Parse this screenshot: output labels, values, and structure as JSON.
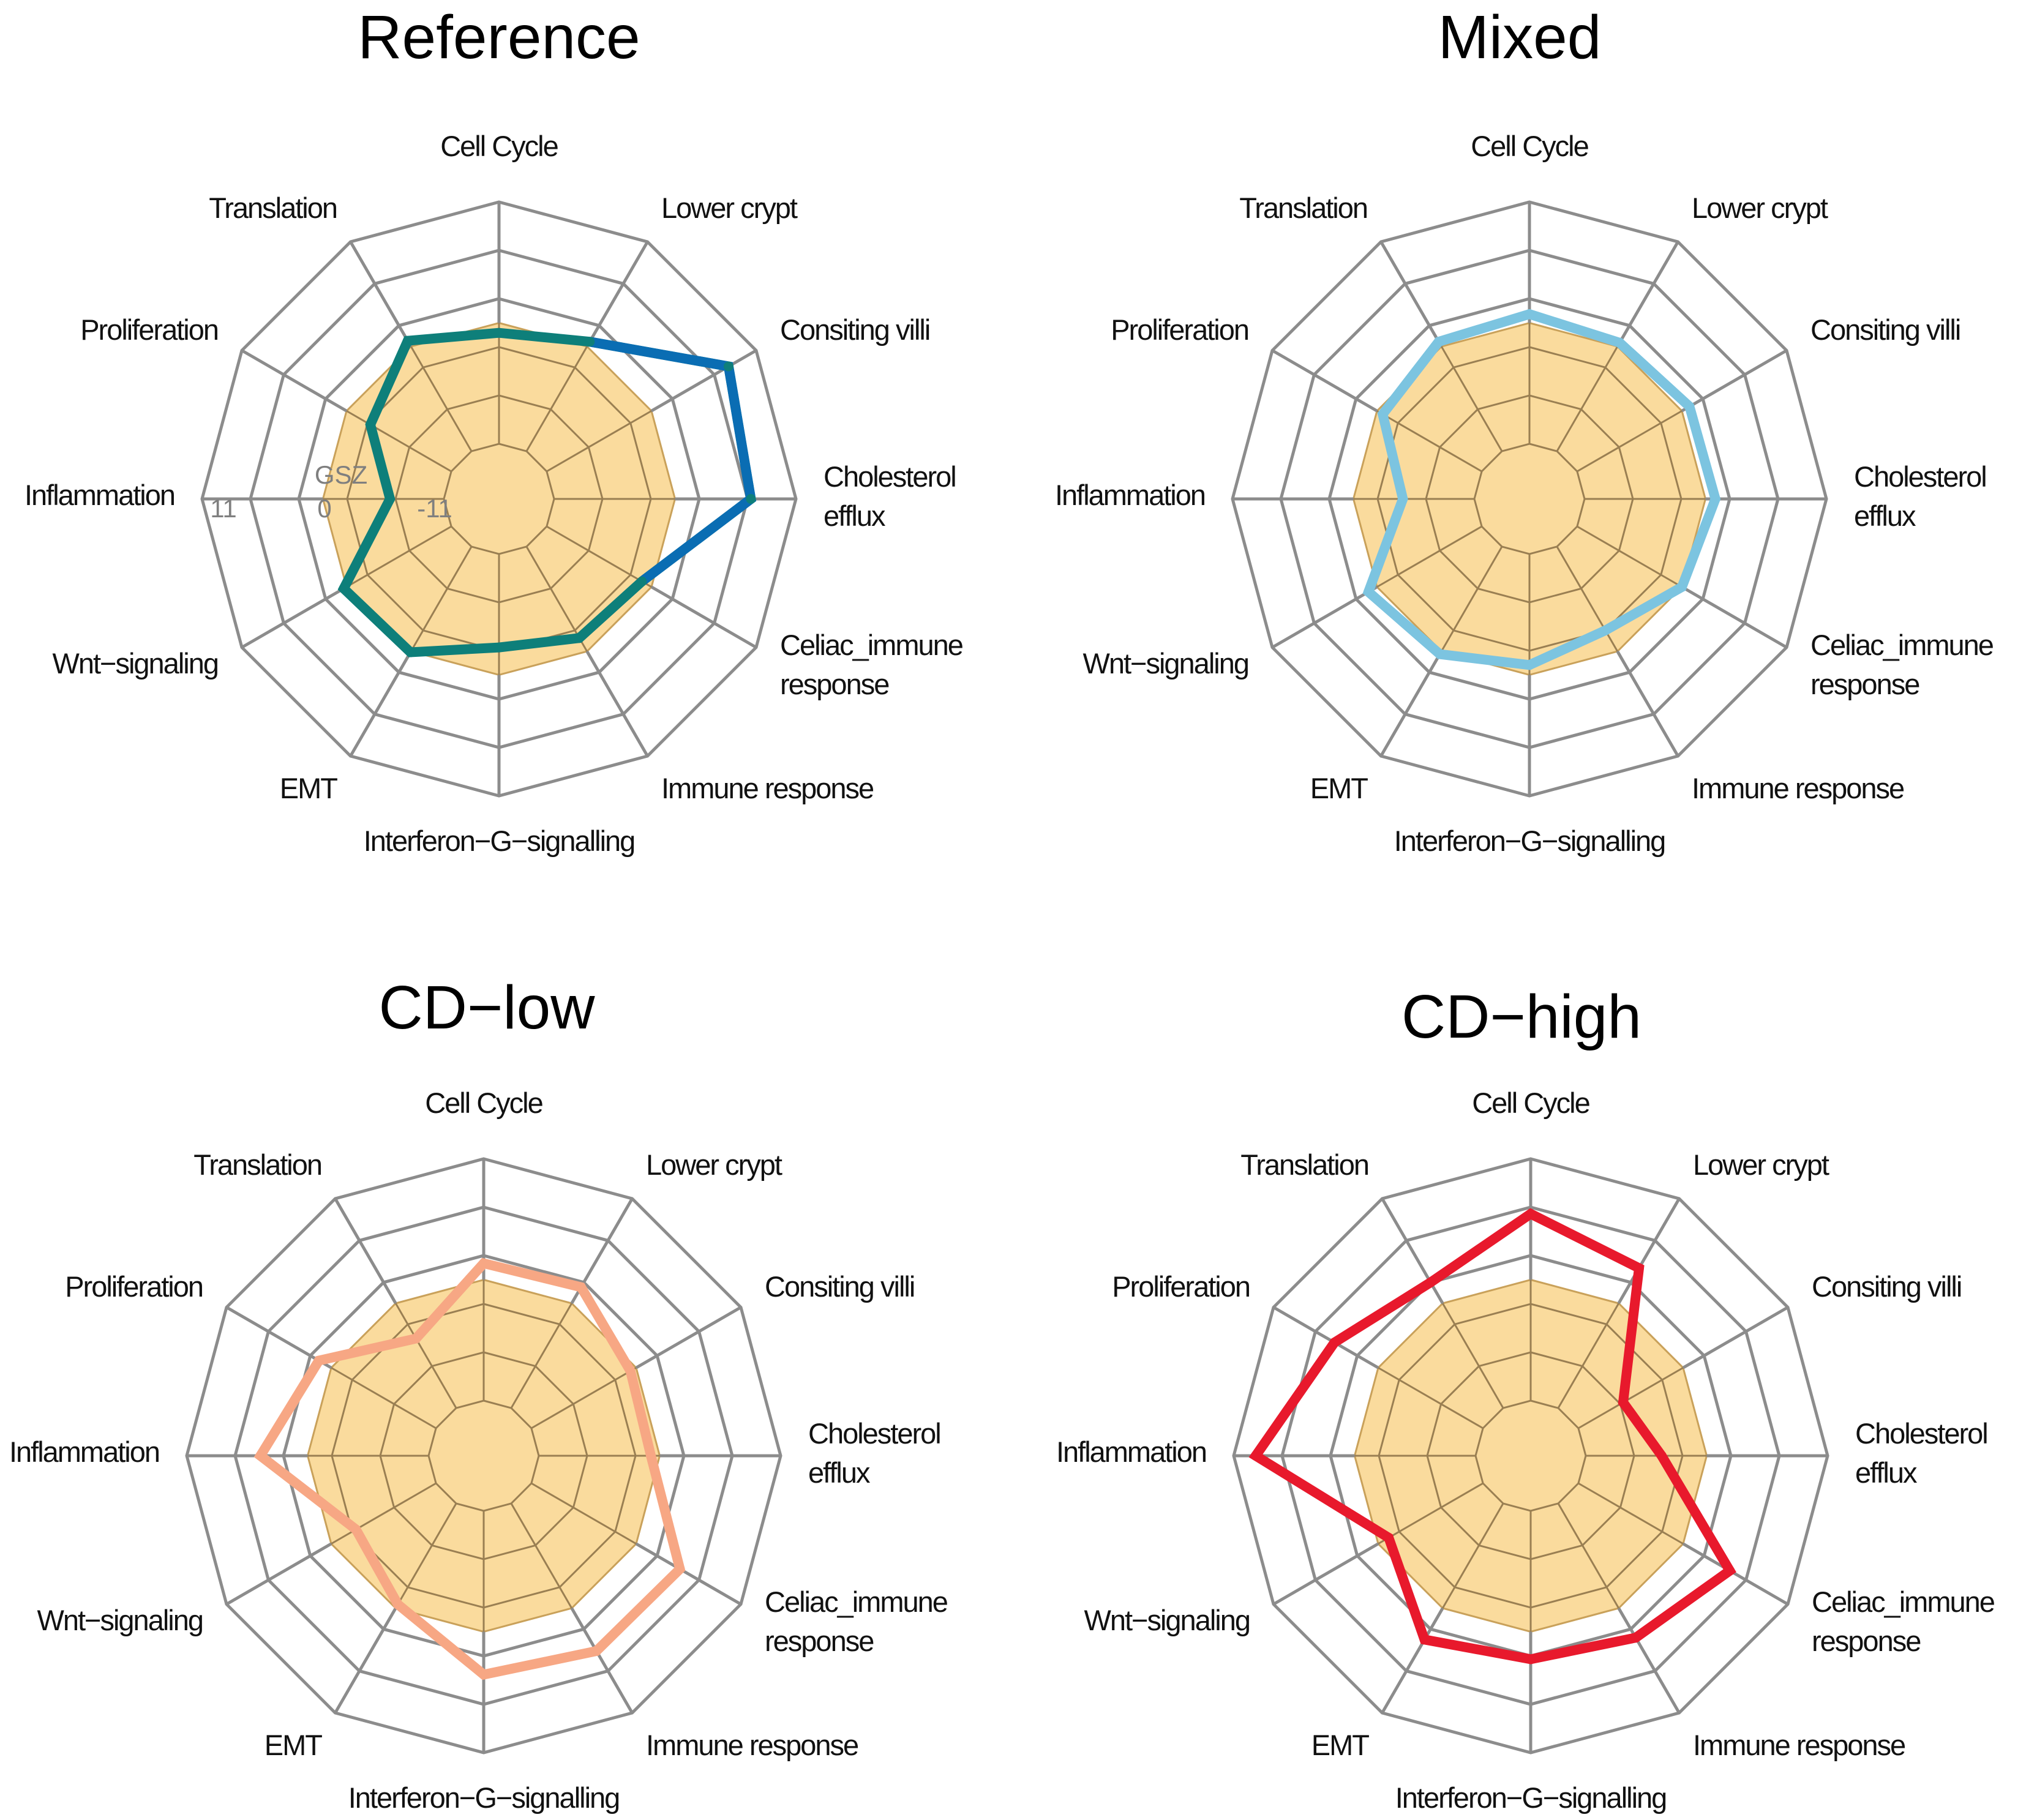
{
  "colors": {
    "reference_fill": "#f9d58c",
    "grid": "#8c8c8c",
    "Reference": "#0e7f7a",
    "Reference_accent": "#0a6db3",
    "Mixed": "#7cc4e0",
    "CD-low": "#f7a784",
    "CD-high": "#e8192c"
  },
  "chart_data": [
    {
      "type": "radar",
      "title": "Reference",
      "scale_title": "GSZ",
      "scale_ticks": [
        "11",
        "0",
        "-11"
      ],
      "rlim": [
        -11,
        11
      ],
      "reference_value": 0,
      "axes": [
        "Cell Cycle",
        "Lower crypt",
        "Consiting villi",
        "Cholesterol\nefflux",
        "Celiac_immune\nresponse",
        "Immune response",
        "Interferon−G−signalling",
        "EMT",
        "Wnt−signaling",
        "Inflammation",
        "Proliferation",
        "Translation"
      ],
      "series": [
        {
          "values": [
            -0.9,
            0.5,
            8.1,
            6.9,
            -1.0,
            -1.4,
            -2.5,
            0.1,
            0.3,
            -6.1,
            -2.5,
            0.6
          ]
        }
      ]
    },
    {
      "type": "radar",
      "title": "Mixed",
      "rlim": [
        -11,
        11
      ],
      "reference_value": 0,
      "axes": [
        "Cell Cycle",
        "Lower crypt",
        "Consiting villi",
        "Cholesterol\nefflux",
        "Celiac_immune\nresponse",
        "Immune response",
        "Interferon−G−signalling",
        "EMT",
        "Wnt−signaling",
        "Inflammation",
        "Proliferation",
        "Translation"
      ],
      "series": [
        {
          "values": [
            0.8,
            0.4,
            0.8,
            0.9,
            0.0,
            -2.2,
            -0.9,
            0.3,
            0.9,
            -4.5,
            -0.6,
            0.5
          ]
        }
      ]
    },
    {
      "type": "radar",
      "title": "CD−low",
      "rlim": [
        -11,
        11
      ],
      "reference_value": 0,
      "axes": [
        "Cell Cycle",
        "Lower crypt",
        "Consiting villi",
        "Cholesterol\nefflux",
        "Celiac_immune\nresponse",
        "Immune response",
        "Interferon−G−signalling",
        "EMT",
        "Wnt−signaling",
        "Inflammation",
        "Proliferation",
        "Translation"
      ],
      "series": [
        {
          "values": [
            1.5,
            1.7,
            -0.6,
            -0.8,
            4.6,
            4.5,
            3.9,
            -0.4,
            -2.6,
            4.3,
            1.3,
            -3.7
          ]
        }
      ]
    },
    {
      "type": "radar",
      "title": "CD−high",
      "rlim": [
        -11,
        11
      ],
      "reference_value": 0,
      "axes": [
        "Cell Cycle",
        "Lower crypt",
        "Consiting villi",
        "Cholesterol\nefflux",
        "Celiac_immune\nresponse",
        "Immune response",
        "Interferon−G−signalling",
        "EMT",
        "Wnt−signaling",
        "Inflammation",
        "Proliferation",
        "Translation"
      ],
      "series": [
        {
          "values": [
            6.0,
            3.7,
            -6.3,
            -4.1,
            4.9,
            3.1,
            2.5,
            3.3,
            -1.1,
            9.0,
            4.6,
            2.2
          ]
        }
      ]
    }
  ]
}
